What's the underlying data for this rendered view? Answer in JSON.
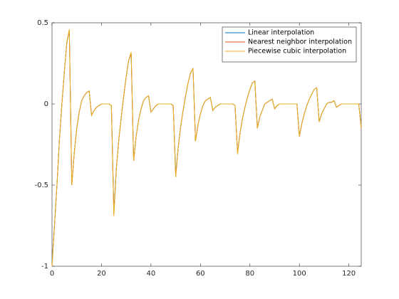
{
  "chart_data": {
    "type": "line",
    "x": [
      0,
      1,
      2,
      3,
      4,
      5,
      6,
      7,
      8,
      9,
      10,
      11,
      12,
      13,
      14,
      15,
      16,
      17,
      18,
      19,
      20,
      21,
      22,
      23,
      24,
      25,
      26,
      27,
      28,
      29,
      30,
      31,
      32,
      33,
      34,
      35,
      36,
      37,
      38,
      39,
      40,
      41,
      42,
      43,
      44,
      45,
      46,
      47,
      48,
      49,
      50,
      51,
      52,
      53,
      54,
      55,
      56,
      57,
      58,
      59,
      60,
      61,
      62,
      63,
      64,
      65,
      66,
      67,
      68,
      69,
      70,
      71,
      72,
      73,
      74,
      75,
      76,
      77,
      78,
      79,
      80,
      81,
      82,
      83,
      84,
      85,
      86,
      87,
      88,
      89,
      90,
      91,
      92,
      93,
      94,
      95,
      96,
      97,
      98,
      99,
      100,
      101,
      102,
      103,
      104,
      105,
      106,
      107,
      108,
      109,
      110,
      111,
      112,
      113,
      114,
      115,
      116,
      117,
      118,
      119,
      120,
      121,
      122,
      123,
      124,
      125
    ],
    "series": [
      {
        "name": "Linear interpolation",
        "color": "#0072bd",
        "values": [
          -0.98,
          -0.75,
          -0.5,
          -0.22,
          0,
          0.2,
          0.38,
          0.45,
          -0.5,
          -0.3,
          -0.15,
          -0.05,
          0.02,
          0.05,
          0.07,
          0.08,
          -0.07,
          -0.04,
          -0.02,
          -0.01,
          0,
          0,
          0,
          0,
          -0.01,
          -0.66,
          -0.4,
          -0.22,
          -0.08,
          0.05,
          0.17,
          0.27,
          0.31,
          -0.35,
          -0.2,
          -0.1,
          -0.03,
          0.02,
          0.04,
          0.05,
          -0.05,
          -0.03,
          -0.01,
          0,
          0,
          0,
          0,
          0,
          0,
          -0.01,
          -0.43,
          -0.27,
          -0.14,
          -0.04,
          0.05,
          0.13,
          0.19,
          0.22,
          -0.23,
          -0.13,
          -0.06,
          -0.01,
          0.02,
          0.03,
          0.04,
          -0.04,
          -0.02,
          -0.01,
          0,
          0,
          0,
          0,
          0,
          0,
          -0.01,
          -0.3,
          -0.18,
          -0.09,
          -0.02,
          0.04,
          0.09,
          0.13,
          0.14,
          -0.15,
          -0.08,
          -0.04,
          0,
          0.01,
          0.02,
          0.03,
          -0.03,
          -0.01,
          0,
          0,
          0,
          0,
          0,
          0,
          0,
          0,
          -0.2,
          -0.12,
          -0.06,
          -0.01,
          0.03,
          0.06,
          0.09,
          0.1,
          -0.11,
          -0.06,
          -0.03,
          0,
          0.01,
          0.01,
          0.02,
          -0.02,
          -0.01,
          0,
          0,
          0,
          0,
          0,
          0,
          0,
          0,
          -0.15
        ]
      },
      {
        "name": "Nearest neighbor interpolation",
        "color": "#d95319",
        "values": [
          -1,
          -0.75,
          -0.5,
          -0.22,
          0,
          0.2,
          0.38,
          0.45,
          -0.5,
          -0.3,
          -0.15,
          -0.05,
          0.02,
          0.05,
          0.07,
          0.08,
          -0.07,
          -0.04,
          -0.02,
          -0.01,
          0,
          0,
          0,
          0,
          -0.01,
          -0.68,
          -0.4,
          -0.22,
          -0.08,
          0.05,
          0.17,
          0.27,
          0.31,
          -0.35,
          -0.2,
          -0.1,
          -0.03,
          0.02,
          0.04,
          0.05,
          -0.05,
          -0.03,
          -0.01,
          0,
          0,
          0,
          0,
          0,
          0,
          -0.01,
          -0.45,
          -0.27,
          -0.14,
          -0.04,
          0.05,
          0.13,
          0.19,
          0.22,
          -0.23,
          -0.13,
          -0.06,
          -0.01,
          0.02,
          0.03,
          0.04,
          -0.04,
          -0.02,
          -0.01,
          0,
          0,
          0,
          0,
          0,
          0,
          -0.01,
          -0.3,
          -0.18,
          -0.09,
          -0.02,
          0.04,
          0.09,
          0.13,
          0.14,
          -0.15,
          -0.08,
          -0.04,
          0,
          0.01,
          0.02,
          0.03,
          -0.03,
          -0.01,
          0,
          0,
          0,
          0,
          0,
          0,
          0,
          0,
          -0.2,
          -0.12,
          -0.06,
          -0.01,
          0.03,
          0.06,
          0.09,
          0.1,
          -0.11,
          -0.06,
          -0.03,
          0,
          0.01,
          0.01,
          0.02,
          -0.02,
          -0.01,
          0,
          0,
          0,
          0,
          0,
          0,
          0,
          0,
          -0.15
        ]
      },
      {
        "name": "Piecewise cubic interpolation",
        "color": "#edb120",
        "values": [
          -1,
          -0.75,
          -0.5,
          -0.22,
          0,
          0.2,
          0.38,
          0.46,
          -0.5,
          -0.3,
          -0.15,
          -0.05,
          0.02,
          0.05,
          0.07,
          0.08,
          -0.07,
          -0.04,
          -0.02,
          -0.01,
          0,
          0,
          0,
          0,
          -0.01,
          -0.69,
          -0.4,
          -0.22,
          -0.08,
          0.05,
          0.17,
          0.27,
          0.32,
          -0.35,
          -0.2,
          -0.1,
          -0.03,
          0.02,
          0.04,
          0.05,
          -0.05,
          -0.03,
          -0.01,
          0,
          0,
          0,
          0,
          0,
          0,
          -0.01,
          -0.45,
          -0.27,
          -0.14,
          -0.04,
          0.05,
          0.13,
          0.19,
          0.22,
          -0.23,
          -0.13,
          -0.06,
          -0.01,
          0.02,
          0.03,
          0.04,
          -0.04,
          -0.02,
          -0.01,
          0,
          0,
          0,
          0,
          0,
          0,
          -0.01,
          -0.31,
          -0.18,
          -0.09,
          -0.02,
          0.04,
          0.09,
          0.13,
          0.14,
          -0.15,
          -0.08,
          -0.04,
          0,
          0.01,
          0.02,
          0.03,
          -0.03,
          -0.01,
          0,
          0,
          0,
          0,
          0,
          0,
          0,
          0,
          -0.2,
          -0.12,
          -0.06,
          -0.01,
          0.03,
          0.06,
          0.09,
          0.1,
          -0.11,
          -0.06,
          -0.03,
          0,
          0.01,
          0.01,
          0.02,
          -0.02,
          -0.01,
          0,
          0,
          0,
          0,
          0,
          0,
          0,
          0,
          -0.15
        ]
      }
    ],
    "xlim": [
      0,
      125
    ],
    "ylim": [
      -1,
      0.5
    ],
    "xticks": [
      0,
      20,
      40,
      60,
      80,
      100,
      120
    ],
    "yticks": [
      -1,
      -0.5,
      0,
      0.5
    ],
    "grid": false,
    "legend": "top-right"
  }
}
